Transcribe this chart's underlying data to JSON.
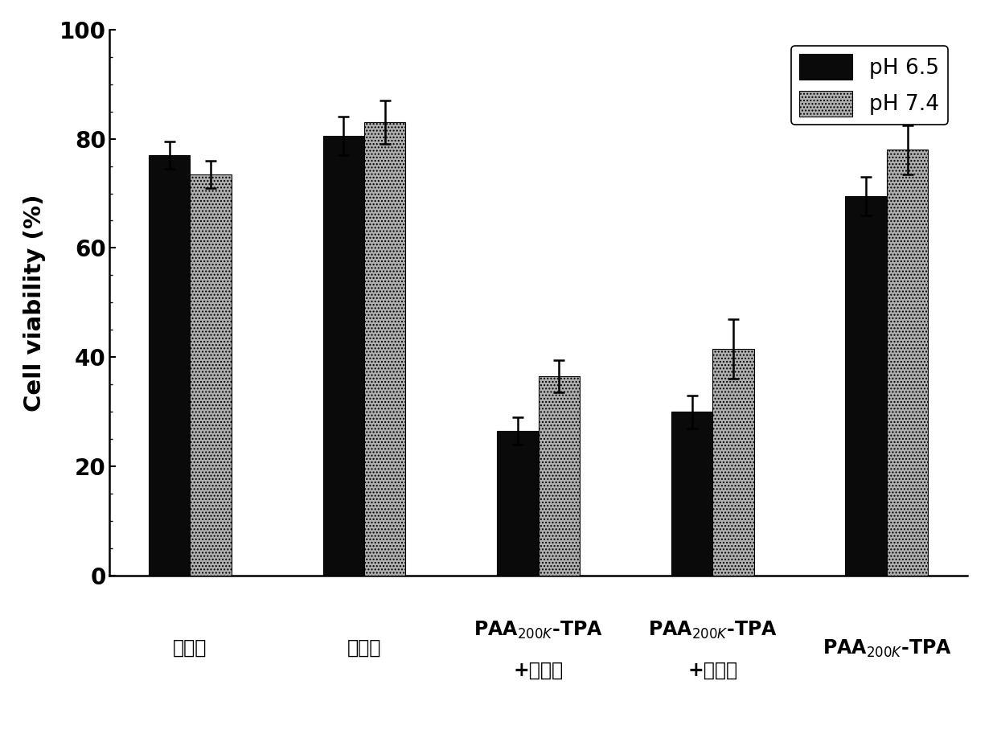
{
  "ph65_values": [
    77.0,
    80.5,
    26.5,
    30.0,
    69.5
  ],
  "ph74_values": [
    73.5,
    83.0,
    36.5,
    41.5,
    78.0
  ],
  "ph65_errors": [
    2.5,
    3.5,
    2.5,
    3.0,
    3.5
  ],
  "ph74_errors": [
    2.5,
    4.0,
    3.0,
    5.5,
    4.5
  ],
  "color_ph65": "#0a0a0a",
  "color_ph74": "#b0b0b0",
  "ylabel": "Cell viability (%)",
  "ylim": [
    0,
    100
  ],
  "yticks": [
    0,
    20,
    40,
    60,
    80,
    100
  ],
  "bar_width": 0.38,
  "legend_labels": [
    "pH 6.5",
    "pH 7.4"
  ],
  "cat_labels_line1": [
    "阿霞素",
    "紫杉醇",
    "PAA$_{200K}$-TPA",
    "PAA$_{200K}$-TPA",
    "PAA$_{200K}$-TPA"
  ],
  "cat_labels_line2": [
    "",
    "",
    "+阿霞素",
    "+紫杉醇",
    ""
  ]
}
